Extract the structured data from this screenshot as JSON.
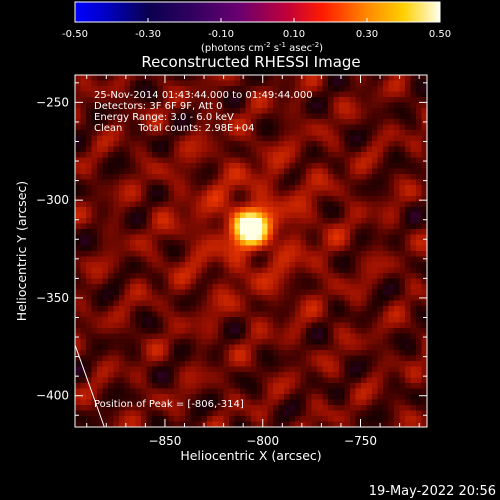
{
  "chart_data": {
    "type": "heatmap",
    "title": "Reconstructed RHESSI Image",
    "xlabel": "Heliocentric X (arcsec)",
    "ylabel": "Heliocentric Y (arcsec)",
    "xlim": [
      -896,
      -716
    ],
    "ylim": [
      -416,
      -236
    ],
    "x_ticks": [
      -850,
      -800,
      -750
    ],
    "y_ticks": [
      -400,
      -350,
      -300,
      -250
    ],
    "colorbar": {
      "range": [
        -0.5,
        0.5
      ],
      "ticks": [
        "-0.50",
        "-0.30",
        "-0.10",
        "0.10",
        "0.30",
        "0.50"
      ],
      "unit_prefix": "(photons cm",
      "unit_exp1": "-2",
      "unit_mid": " s",
      "unit_exp2": "-1",
      "unit_mid2": " asec",
      "unit_exp3": "-2",
      "unit_suffix": ")"
    },
    "peak": {
      "x": -806,
      "y": -314,
      "value": 0.5
    },
    "annotations": {
      "time_range": "25-Nov-2014 01:43:44.000 to 01:49:44.000",
      "detectors": "Detectors: 3F 6F 9F, Att 0",
      "energy": "Energy Range: 3.0 - 6.0 keV",
      "clean": "Clean     Total counts: 2.98E+04",
      "peak_label": "Position of Peak = [-806,-314]"
    },
    "limb_line": {
      "x": [
        -896,
        -881
      ],
      "y": [
        -374,
        -416
      ]
    },
    "grid": false
  },
  "footer": {
    "date": "19-May-2022 20:56"
  },
  "colors": {
    "background": "#000000",
    "text": "#ffffff"
  }
}
